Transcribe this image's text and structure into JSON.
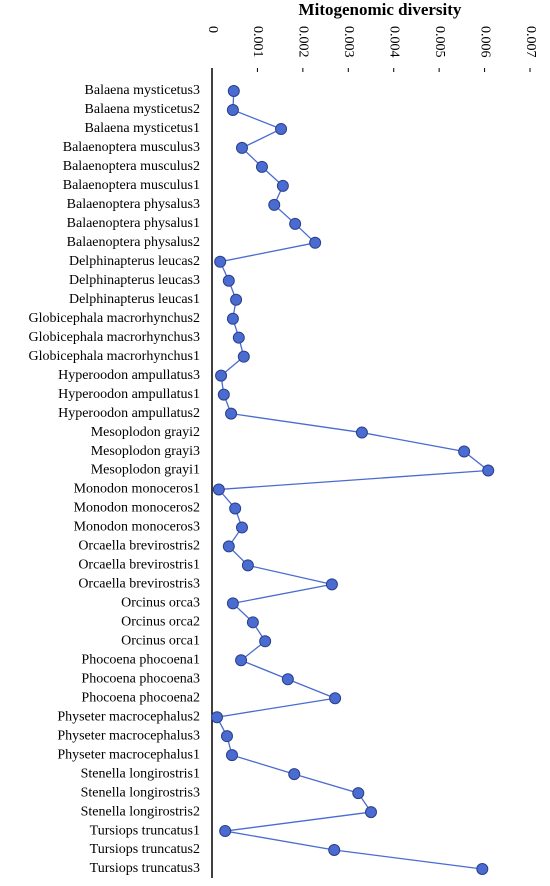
{
  "chart_data": {
    "type": "line",
    "title": "Mitogenomic diversity",
    "categories": [
      "Balaena mysticetus3",
      "Balaena mysticetus2",
      "Balaena mysticetus1",
      "Balaenoptera musculus3",
      "Balaenoptera musculus2",
      "Balaenoptera musculus1",
      "Balaenoptera physalus3",
      "Balaenoptera physalus1",
      "Balaenoptera physalus2",
      "Delphinapterus leucas2",
      "Delphinapterus leucas3",
      "Delphinapterus leucas1",
      "Globicephala macrorhynchus2",
      "Globicephala macrorhynchus3",
      "Globicephala macrorhynchus1",
      "Hyperoodon ampullatus3",
      "Hyperoodon ampullatus1",
      "Hyperoodon ampullatus2",
      "Mesoplodon grayi2",
      "Mesoplodon grayi3",
      "Mesoplodon grayi1",
      "Monodon monoceros1",
      "Monodon monoceros2",
      "Monodon monoceros3",
      "Orcaella brevirostris2",
      "Orcaella brevirostris1",
      "Orcaella brevirostris3",
      "Orcinus orca3",
      "Orcinus orca2",
      "Orcinus orca1",
      "Phocoena phocoena1",
      "Phocoena phocoena3",
      "Phocoena phocoena2",
      "Physeter macrocephalus2",
      "Physeter macrocephalus3",
      "Physeter macrocephalus1",
      "Stenella longirostris1",
      "Stenella longirostris3",
      "Stenella longirostris2",
      "Tursiops truncatus1",
      "Tursiops truncatus2",
      "Tursiops truncatus3"
    ],
    "values": [
      0.00048,
      0.00046,
      0.00152,
      0.00066,
      0.0011,
      0.00156,
      0.00137,
      0.00183,
      0.00227,
      0.00018,
      0.00037,
      0.00053,
      0.00046,
      0.00059,
      0.0007,
      0.0002,
      0.00026,
      0.00042,
      0.0033,
      0.00555,
      0.00608,
      0.00015,
      0.00051,
      0.00066,
      0.00037,
      0.00079,
      0.00264,
      0.00046,
      0.0009,
      0.00117,
      0.00064,
      0.00167,
      0.00271,
      0.00011,
      0.00033,
      0.00044,
      0.00181,
      0.00322,
      0.0035,
      0.00029,
      0.00269,
      0.00595
    ],
    "color": "#4a6bd0",
    "xlim": [
      0,
      0.007
    ],
    "xticks": [
      0,
      0.001,
      0.002,
      0.003,
      0.004,
      0.005,
      0.006,
      0.007
    ]
  }
}
